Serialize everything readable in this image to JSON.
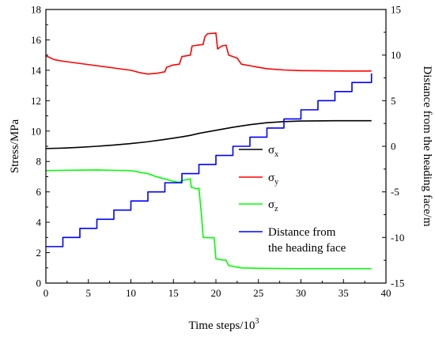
{
  "chart_data": {
    "type": "line",
    "xlabel": "Time steps/10",
    "xlabel_sup": "3",
    "ylabel": "Stress/MPa",
    "y2label": "Distance from the heading face/m",
    "xlim": [
      0,
      40
    ],
    "ylim": [
      0,
      18
    ],
    "y2lim": [
      -15,
      15
    ],
    "x_ticks": [
      "0",
      "5",
      "10",
      "15",
      "20",
      "25",
      "30",
      "35",
      "40"
    ],
    "y_ticks": [
      "0",
      "2",
      "4",
      "6",
      "8",
      "10",
      "12",
      "14",
      "16",
      "18"
    ],
    "y2_ticks": [
      "-15",
      "-10",
      "-5",
      "0",
      "5",
      "10",
      "15"
    ],
    "grid": false,
    "legend_position": "lower-right",
    "series": [
      {
        "name": "σx",
        "legend_base": "σ",
        "legend_sub": "x",
        "axis": "left",
        "color": "#000000",
        "x": [
          0,
          2,
          4,
          6,
          8,
          10,
          12,
          14,
          16,
          17,
          18,
          20,
          22,
          24,
          26,
          28,
          30,
          34,
          38.3
        ],
        "y": [
          8.85,
          8.88,
          8.93,
          9.0,
          9.08,
          9.18,
          9.3,
          9.45,
          9.62,
          9.72,
          9.85,
          10.05,
          10.25,
          10.42,
          10.55,
          10.62,
          10.66,
          10.68,
          10.68
        ]
      },
      {
        "name": "σy",
        "legend_base": "σ",
        "legend_sub": "y",
        "axis": "left",
        "color": "#ff0000",
        "x": [
          0,
          1,
          2,
          4,
          6,
          8,
          10,
          11,
          12,
          13,
          14,
          14.2,
          15,
          15.7,
          16,
          17,
          17.2,
          18.5,
          18.7,
          19,
          20,
          20.2,
          20.7,
          21.2,
          21.5,
          22.5,
          23,
          24,
          25,
          26,
          28,
          30,
          35,
          38.3
        ],
        "y": [
          14.95,
          14.7,
          14.6,
          14.45,
          14.3,
          14.15,
          14.0,
          13.85,
          13.75,
          13.8,
          13.9,
          14.2,
          14.35,
          14.4,
          14.9,
          15.0,
          15.6,
          15.7,
          16.2,
          16.4,
          16.45,
          15.4,
          15.6,
          15.65,
          15.0,
          14.8,
          14.4,
          14.3,
          14.2,
          14.1,
          14.02,
          13.98,
          13.95,
          13.95
        ]
      },
      {
        "name": "σz",
        "legend_base": "σ",
        "legend_sub": "z",
        "axis": "left",
        "color": "#00ff00",
        "x": [
          0,
          2,
          4,
          6,
          8,
          10,
          11,
          12,
          13,
          14,
          15,
          15.7,
          16,
          17,
          17.1,
          17.8,
          18,
          18.3,
          18.5,
          19,
          19.8,
          20,
          20.3,
          21.2,
          21.5,
          22.5,
          23,
          25,
          30,
          35,
          38.3
        ],
        "y": [
          7.4,
          7.42,
          7.43,
          7.44,
          7.42,
          7.4,
          7.3,
          7.2,
          7.0,
          6.85,
          6.7,
          6.62,
          6.75,
          6.85,
          6.3,
          6.2,
          6.25,
          4.5,
          3.0,
          2.98,
          2.98,
          1.6,
          1.55,
          1.5,
          1.15,
          1.05,
          1.0,
          0.97,
          0.95,
          0.95,
          0.95
        ]
      },
      {
        "name": "Distance from the heading face",
        "legend_lines": [
          "Distance from",
          "the heading face"
        ],
        "axis": "right",
        "color": "#0000ff",
        "style": "step",
        "x": [
          0,
          2,
          4,
          6,
          8,
          10,
          12,
          14,
          16,
          18,
          20,
          22,
          24,
          26,
          28,
          30,
          32,
          34,
          36,
          38.3
        ],
        "y": [
          -11,
          -10,
          -9,
          -8,
          -7,
          -6,
          -5,
          -4,
          -3,
          -2,
          -1,
          0,
          1,
          2,
          3,
          4,
          5,
          6,
          7,
          8
        ]
      }
    ]
  }
}
